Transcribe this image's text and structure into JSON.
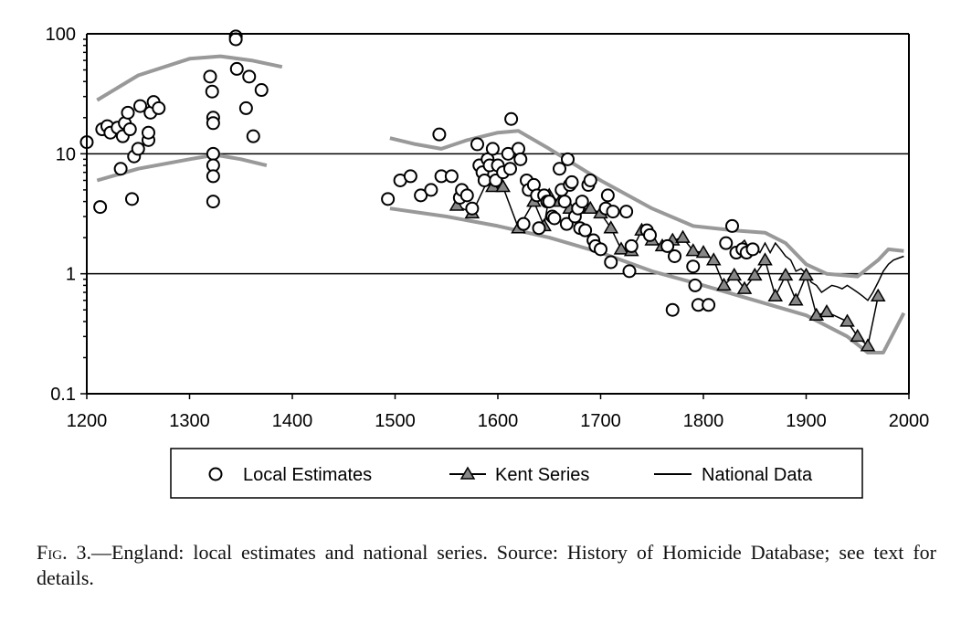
{
  "chart_data": {
    "type": "scatter",
    "title": "",
    "xlabel": "",
    "ylabel": "",
    "xlim": [
      1200,
      2000
    ],
    "ylim": [
      0.1,
      100
    ],
    "yscale": "log",
    "xticks": [
      "1200",
      "1300",
      "1400",
      "1500",
      "1600",
      "1700",
      "1800",
      "1900",
      "2000"
    ],
    "yticks": [
      "100",
      "10",
      "1",
      "0.1"
    ],
    "grid": "horizontal at 10 and 1",
    "legend": {
      "placement": "bottom",
      "entries": [
        "Local Estimates",
        "Kent Series",
        "National Data"
      ]
    },
    "series": [
      {
        "name": "Local Estimates",
        "marker": "circle",
        "points": [
          [
            1200,
            12.5
          ],
          [
            1213,
            3.6
          ],
          [
            1215,
            16
          ],
          [
            1220,
            17
          ],
          [
            1223,
            15
          ],
          [
            1230,
            16.5
          ],
          [
            1233,
            7.5
          ],
          [
            1235,
            14
          ],
          [
            1237,
            18
          ],
          [
            1240,
            22
          ],
          [
            1242,
            16
          ],
          [
            1244,
            4.2
          ],
          [
            1246,
            9.5
          ],
          [
            1250,
            11
          ],
          [
            1252,
            25
          ],
          [
            1260,
            13
          ],
          [
            1260,
            15
          ],
          [
            1262,
            22
          ],
          [
            1265,
            27
          ],
          [
            1270,
            24
          ],
          [
            1320,
            44
          ],
          [
            1322,
            33
          ],
          [
            1323,
            20
          ],
          [
            1323,
            18
          ],
          [
            1323,
            10
          ],
          [
            1323,
            8
          ],
          [
            1323,
            6.5
          ],
          [
            1323,
            4
          ],
          [
            1345,
            95
          ],
          [
            1345,
            90
          ],
          [
            1346,
            51
          ],
          [
            1355,
            24
          ],
          [
            1358,
            44
          ],
          [
            1362,
            14
          ],
          [
            1370,
            34
          ],
          [
            1493,
            4.2
          ],
          [
            1505,
            6
          ],
          [
            1515,
            6.5
          ],
          [
            1525,
            4.5
          ],
          [
            1535,
            5
          ],
          [
            1543,
            14.5
          ],
          [
            1545,
            6.5
          ],
          [
            1555,
            6.5
          ],
          [
            1563,
            4.3
          ],
          [
            1565,
            5
          ],
          [
            1570,
            4.5
          ],
          [
            1575,
            3.5
          ],
          [
            1580,
            12
          ],
          [
            1582,
            8
          ],
          [
            1585,
            7
          ],
          [
            1587,
            6
          ],
          [
            1590,
            9
          ],
          [
            1592,
            8
          ],
          [
            1595,
            11
          ],
          [
            1598,
            6
          ],
          [
            1600,
            8
          ],
          [
            1605,
            7
          ],
          [
            1610,
            10
          ],
          [
            1612,
            7.5
          ],
          [
            1613,
            19.5
          ],
          [
            1620,
            11
          ],
          [
            1622,
            9
          ],
          [
            1625,
            2.6
          ],
          [
            1628,
            6
          ],
          [
            1630,
            5
          ],
          [
            1635,
            5.5
          ],
          [
            1638,
            4.5
          ],
          [
            1640,
            2.4
          ],
          [
            1645,
            4.5
          ],
          [
            1648,
            4
          ],
          [
            1650,
            4
          ],
          [
            1653,
            3
          ],
          [
            1655,
            2.9
          ],
          [
            1660,
            7.5
          ],
          [
            1662,
            5
          ],
          [
            1665,
            4
          ],
          [
            1667,
            2.6
          ],
          [
            1668,
            9
          ],
          [
            1670,
            5.5
          ],
          [
            1672,
            5.8
          ],
          [
            1675,
            3
          ],
          [
            1678,
            3.5
          ],
          [
            1680,
            2.4
          ],
          [
            1682,
            4
          ],
          [
            1685,
            2.3
          ],
          [
            1688,
            5.5
          ],
          [
            1690,
            6
          ],
          [
            1693,
            1.9
          ],
          [
            1695,
            1.7
          ],
          [
            1700,
            1.6
          ],
          [
            1705,
            3.5
          ],
          [
            1707,
            4.5
          ],
          [
            1710,
            1.25
          ],
          [
            1712,
            3.3
          ],
          [
            1725,
            3.3
          ],
          [
            1728,
            1.05
          ],
          [
            1730,
            1.7
          ],
          [
            1745,
            2.3
          ],
          [
            1748,
            2.1
          ],
          [
            1765,
            1.7
          ],
          [
            1770,
            0.5
          ],
          [
            1772,
            1.4
          ],
          [
            1790,
            1.15
          ],
          [
            1792,
            0.8
          ],
          [
            1795,
            0.55
          ],
          [
            1805,
            0.55
          ],
          [
            1822,
            1.8
          ],
          [
            1828,
            2.5
          ],
          [
            1832,
            1.5
          ],
          [
            1838,
            1.6
          ],
          [
            1842,
            1.5
          ],
          [
            1848,
            1.6
          ]
        ]
      },
      {
        "name": "Kent Series",
        "marker": "triangle",
        "points": [
          [
            1560,
            3.7
          ],
          [
            1575,
            3.2
          ],
          [
            1590,
            6
          ],
          [
            1595,
            5.3
          ],
          [
            1605,
            5.3
          ],
          [
            1620,
            2.4
          ],
          [
            1635,
            4
          ],
          [
            1645,
            2.5
          ],
          [
            1650,
            4.5
          ],
          [
            1660,
            4
          ],
          [
            1670,
            3.5
          ],
          [
            1680,
            3.5
          ],
          [
            1690,
            3.5
          ],
          [
            1700,
            3.2
          ],
          [
            1710,
            2.4
          ],
          [
            1720,
            1.6
          ],
          [
            1730,
            1.55
          ],
          [
            1740,
            2.3
          ],
          [
            1750,
            1.9
          ],
          [
            1760,
            1.7
          ],
          [
            1770,
            1.9
          ],
          [
            1780,
            2
          ],
          [
            1790,
            1.55
          ],
          [
            1800,
            1.5
          ],
          [
            1810,
            1.3
          ],
          [
            1820,
            0.8
          ],
          [
            1830,
            0.97
          ],
          [
            1840,
            0.75
          ],
          [
            1850,
            0.97
          ],
          [
            1860,
            1.3
          ],
          [
            1870,
            0.65
          ],
          [
            1880,
            0.97
          ],
          [
            1890,
            0.6
          ],
          [
            1900,
            0.97
          ],
          [
            1910,
            0.45
          ],
          [
            1920,
            0.48
          ],
          [
            1940,
            0.4
          ],
          [
            1950,
            0.3
          ],
          [
            1960,
            0.25
          ],
          [
            1970,
            0.65
          ]
        ]
      },
      {
        "name": "National Data",
        "marker": "line",
        "points": [
          [
            1834,
            1.7
          ],
          [
            1840,
            1.9
          ],
          [
            1845,
            1.6
          ],
          [
            1850,
            1.7
          ],
          [
            1855,
            1.5
          ],
          [
            1860,
            1.8
          ],
          [
            1865,
            1.5
          ],
          [
            1870,
            1.8
          ],
          [
            1875,
            1.6
          ],
          [
            1880,
            1.4
          ],
          [
            1885,
            1.3
          ],
          [
            1890,
            1.05
          ],
          [
            1895,
            1.1
          ],
          [
            1900,
            1.0
          ],
          [
            1905,
            0.85
          ],
          [
            1910,
            0.8
          ],
          [
            1915,
            0.7
          ],
          [
            1920,
            0.75
          ],
          [
            1925,
            0.8
          ],
          [
            1930,
            0.78
          ],
          [
            1935,
            0.75
          ],
          [
            1940,
            0.8
          ],
          [
            1945,
            0.75
          ],
          [
            1950,
            0.7
          ],
          [
            1955,
            0.65
          ],
          [
            1960,
            0.6
          ],
          [
            1965,
            0.7
          ],
          [
            1970,
            0.85
          ],
          [
            1975,
            1.05
          ],
          [
            1980,
            1.2
          ],
          [
            1985,
            1.3
          ],
          [
            1990,
            1.35
          ],
          [
            1995,
            1.4
          ]
        ]
      }
    ],
    "bands": [
      {
        "name": "upper-bound-medieval",
        "points": [
          [
            1210,
            28
          ],
          [
            1250,
            45
          ],
          [
            1300,
            62
          ],
          [
            1330,
            65
          ],
          [
            1360,
            60
          ],
          [
            1390,
            53
          ]
        ]
      },
      {
        "name": "lower-bound-medieval",
        "points": [
          [
            1210,
            6
          ],
          [
            1250,
            7.5
          ],
          [
            1300,
            9
          ],
          [
            1325,
            9.8
          ],
          [
            1350,
            9
          ],
          [
            1375,
            8
          ]
        ]
      },
      {
        "name": "upper-bound-modern",
        "points": [
          [
            1495,
            13.5
          ],
          [
            1520,
            12
          ],
          [
            1545,
            11
          ],
          [
            1570,
            13
          ],
          [
            1600,
            15
          ],
          [
            1620,
            15.5
          ],
          [
            1650,
            11
          ],
          [
            1700,
            6
          ],
          [
            1750,
            3.5
          ],
          [
            1790,
            2.5
          ],
          [
            1830,
            2.3
          ],
          [
            1860,
            2.2
          ],
          [
            1880,
            1.8
          ],
          [
            1900,
            1.2
          ],
          [
            1920,
            1.0
          ],
          [
            1950,
            0.95
          ],
          [
            1970,
            1.3
          ],
          [
            1980,
            1.6
          ],
          [
            1995,
            1.55
          ]
        ]
      },
      {
        "name": "lower-bound-modern",
        "points": [
          [
            1495,
            3.5
          ],
          [
            1550,
            3
          ],
          [
            1600,
            2.5
          ],
          [
            1650,
            2
          ],
          [
            1700,
            1.5
          ],
          [
            1750,
            1.05
          ],
          [
            1800,
            0.8
          ],
          [
            1850,
            0.6
          ],
          [
            1900,
            0.45
          ],
          [
            1940,
            0.3
          ],
          [
            1960,
            0.22
          ],
          [
            1975,
            0.22
          ],
          [
            1995,
            0.47
          ]
        ]
      }
    ]
  },
  "caption": {
    "fig_label": "Fig. 3.",
    "text": "—England: local estimates and national series. Source: History of Homicide Database; see text for details."
  }
}
